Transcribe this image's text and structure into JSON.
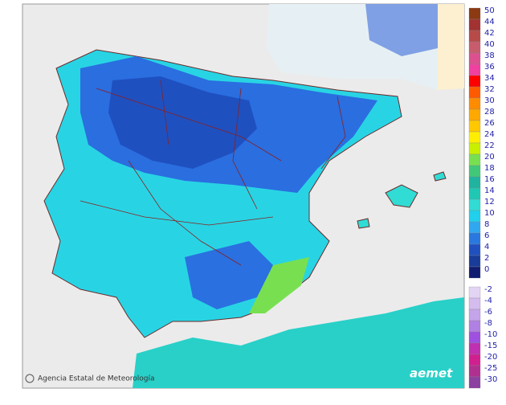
{
  "legend": {
    "items": [
      {
        "label": "50",
        "color": "#8b3a12"
      },
      {
        "label": "44",
        "color": "#a33232"
      },
      {
        "label": "42",
        "color": "#b84a4a"
      },
      {
        "label": "40",
        "color": "#c85c6c"
      },
      {
        "label": "38",
        "color": "#dc5090"
      },
      {
        "label": "36",
        "color": "#f040a0"
      },
      {
        "label": "34",
        "color": "#ff0000"
      },
      {
        "label": "32",
        "color": "#ff5a00"
      },
      {
        "label": "30",
        "color": "#ff8c00"
      },
      {
        "label": "28",
        "color": "#ffa800"
      },
      {
        "label": "26",
        "color": "#ffc800"
      },
      {
        "label": "24",
        "color": "#ffee00"
      },
      {
        "label": "22",
        "color": "#c8f000"
      },
      {
        "label": "20",
        "color": "#78e050"
      },
      {
        "label": "18",
        "color": "#40c878"
      },
      {
        "label": "16",
        "color": "#20b4a0"
      },
      {
        "label": "14",
        "color": "#20c8b4"
      },
      {
        "label": "12",
        "color": "#30dcd4"
      },
      {
        "label": "10",
        "color": "#20d0ec"
      },
      {
        "label": "8",
        "color": "#30a8f0"
      },
      {
        "label": "6",
        "color": "#2878e0"
      },
      {
        "label": "4",
        "color": "#2050c0"
      },
      {
        "label": "2",
        "color": "#183c98"
      },
      {
        "label": "0",
        "color": "#101c70"
      }
    ],
    "negative_items": [
      {
        "label": "-2",
        "color": "#e4d4f4"
      },
      {
        "label": "-4",
        "color": "#d4bcee"
      },
      {
        "label": "-6",
        "color": "#c4a4ea"
      },
      {
        "label": "-8",
        "color": "#b080e2"
      },
      {
        "label": "-10",
        "color": "#a050e0"
      },
      {
        "label": "-15",
        "color": "#c030b0"
      },
      {
        "label": "-20",
        "color": "#d02090"
      },
      {
        "label": "-25",
        "color": "#b03090"
      },
      {
        "label": "-30",
        "color": "#8c40a0"
      }
    ]
  },
  "footer": {
    "credit": "Agencia Estatal de Meteorología",
    "logo": "aemet"
  }
}
